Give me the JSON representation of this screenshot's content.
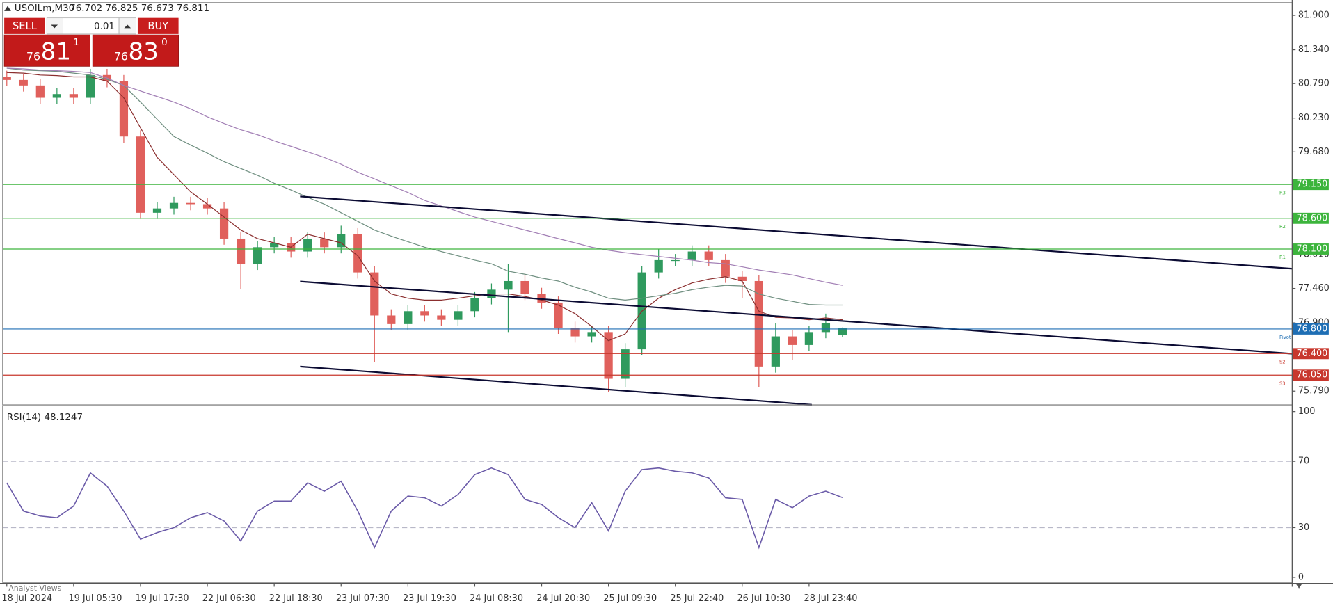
{
  "chart_data": [
    {
      "type": "candlestick",
      "title": "USOILm,M30",
      "ohlc_label": "76.702 76.825 76.673 76.811",
      "x": [
        "18 Jul 2024",
        null,
        null,
        null,
        "19 Jul 05:30",
        null,
        null,
        null,
        "19 Jul 17:30",
        null,
        null,
        null,
        "22 Jul 06:30",
        null,
        null,
        null,
        "22 Jul 18:30",
        null,
        null,
        null,
        "23 Jul 07:30",
        null,
        null,
        null,
        "23 Jul 19:30",
        null,
        null,
        null,
        "24 Jul 08:30",
        null,
        null,
        null,
        "24 Jul 20:30",
        null,
        null,
        null,
        "25 Jul 09:30",
        null,
        null,
        null,
        "25 Jul 22:40",
        null,
        null,
        null,
        "26 Jul 10:30",
        null,
        null,
        null,
        "28 Jul 23:40",
        null,
        null
      ],
      "open": [
        80.9,
        80.85,
        80.76,
        80.56,
        80.62,
        80.56,
        80.93,
        80.83,
        79.93,
        78.69,
        78.76,
        78.85,
        78.83,
        78.76,
        78.27,
        77.86,
        78.13,
        78.2,
        78.06,
        78.27,
        78.13,
        78.34,
        77.72,
        77.02,
        76.88,
        77.09,
        77.02,
        76.95,
        77.09,
        77.3,
        77.44,
        77.58,
        77.37,
        77.23,
        76.82,
        76.68,
        76.75,
        75.99,
        76.47,
        77.72,
        77.92,
        77.92,
        78.06,
        77.92,
        77.65,
        77.58,
        76.19,
        76.68,
        76.54,
        76.75,
        76.702
      ],
      "high": [
        81.0,
        80.95,
        80.86,
        80.72,
        80.72,
        81.03,
        81.03,
        80.93,
        80.03,
        78.86,
        78.95,
        78.95,
        78.93,
        78.86,
        78.37,
        78.23,
        78.3,
        78.3,
        78.37,
        78.37,
        78.48,
        78.44,
        77.82,
        77.12,
        77.19,
        77.19,
        77.12,
        77.19,
        77.4,
        77.54,
        77.86,
        77.68,
        77.47,
        77.33,
        76.92,
        76.85,
        76.85,
        76.57,
        77.82,
        78.1,
        78.02,
        78.16,
        78.16,
        78.02,
        77.75,
        77.68,
        76.9,
        76.78,
        76.85,
        77.05,
        76.825
      ],
      "low": [
        80.75,
        80.66,
        80.46,
        80.46,
        80.46,
        80.46,
        80.73,
        79.83,
        78.59,
        78.59,
        78.66,
        78.73,
        78.66,
        78.17,
        77.45,
        77.76,
        78.03,
        77.96,
        77.96,
        78.03,
        78.03,
        77.62,
        76.26,
        76.78,
        76.78,
        76.92,
        76.85,
        76.85,
        76.99,
        77.2,
        76.75,
        77.27,
        77.13,
        76.72,
        76.58,
        76.58,
        75.78,
        75.85,
        76.37,
        77.62,
        77.82,
        77.82,
        77.82,
        77.55,
        77.3,
        75.85,
        76.09,
        76.3,
        76.44,
        76.65,
        76.673
      ],
      "close": [
        80.85,
        80.76,
        80.56,
        80.62,
        80.56,
        80.93,
        80.83,
        79.93,
        78.69,
        78.76,
        78.85,
        78.83,
        78.76,
        78.27,
        77.86,
        78.13,
        78.2,
        78.06,
        78.27,
        78.13,
        78.34,
        77.72,
        77.02,
        76.88,
        77.09,
        77.02,
        76.95,
        77.09,
        77.3,
        77.44,
        77.58,
        77.37,
        77.23,
        76.82,
        76.68,
        76.75,
        75.99,
        76.47,
        77.72,
        77.92,
        77.92,
        78.06,
        77.92,
        77.65,
        77.58,
        76.19,
        76.68,
        76.54,
        76.75,
        76.89,
        76.811
      ],
      "up_color": "#2f9a5e",
      "down_color": "#e0605c",
      "series": [
        {
          "color": "#8b2e2e",
          "values": [
            80.97,
            80.96,
            80.93,
            80.92,
            80.9,
            80.9,
            80.83,
            80.56,
            80.07,
            79.59,
            79.31,
            79.03,
            78.83,
            78.62,
            78.41,
            78.27,
            78.2,
            78.13,
            78.34,
            78.27,
            78.2,
            77.99,
            77.58,
            77.37,
            77.3,
            77.27,
            77.27,
            77.3,
            77.34,
            77.37,
            77.37,
            77.33,
            77.27,
            77.19,
            77.05,
            76.84,
            76.61,
            76.72,
            77.09,
            77.3,
            77.44,
            77.55,
            77.61,
            77.65,
            77.58,
            77.09,
            76.99,
            76.98,
            76.95,
            76.98,
            76.95
          ]
        },
        {
          "color": "#6f8f80",
          "values": [
            81.04,
            81.01,
            81.0,
            80.99,
            80.96,
            80.93,
            80.86,
            80.76,
            80.49,
            80.21,
            79.93,
            79.79,
            79.66,
            79.52,
            79.41,
            79.3,
            79.17,
            79.06,
            78.94,
            78.83,
            78.69,
            78.55,
            78.41,
            78.31,
            78.22,
            78.13,
            78.06,
            77.99,
            77.92,
            77.86,
            77.74,
            77.69,
            77.63,
            77.58,
            77.48,
            77.4,
            77.3,
            77.27,
            77.3,
            77.34,
            77.38,
            77.44,
            77.48,
            77.51,
            77.5,
            77.37,
            77.3,
            77.25,
            77.2,
            77.19,
            77.19
          ]
        },
        {
          "color": "#a27fb5",
          "values": [
            81.04,
            81.03,
            81.01,
            81.0,
            80.99,
            80.97,
            80.88,
            80.76,
            80.67,
            80.58,
            80.49,
            80.38,
            80.25,
            80.14,
            80.04,
            79.96,
            79.86,
            79.77,
            79.68,
            79.59,
            79.48,
            79.35,
            79.24,
            79.13,
            79.02,
            78.89,
            78.8,
            78.71,
            78.62,
            78.55,
            78.48,
            78.41,
            78.34,
            78.27,
            78.2,
            78.13,
            78.08,
            78.04,
            78.01,
            77.98,
            77.95,
            77.92,
            77.88,
            77.86,
            77.81,
            77.76,
            77.72,
            77.68,
            77.62,
            77.56,
            77.51
          ]
        }
      ],
      "ylim": [
        75.568,
        82.108
      ],
      "yticks": [
        {
          "value": 81.9,
          "label": "81.900"
        },
        {
          "value": 81.34,
          "label": "81.340"
        },
        {
          "value": 80.79,
          "label": "80.790"
        },
        {
          "value": 80.23,
          "label": "80.230"
        },
        {
          "value": 79.68,
          "label": "79.680"
        },
        {
          "value": 78.01,
          "label": "78.010"
        },
        {
          "value": 77.46,
          "label": "77.460"
        },
        {
          "value": 76.9,
          "label": "76.900"
        },
        {
          "value": 75.79,
          "label": "75.790"
        }
      ],
      "levels": [
        {
          "name": "R3",
          "value": 79.15,
          "label": "79.150",
          "color": "#3cb43c"
        },
        {
          "name": "R2",
          "value": 78.6,
          "label": "78.600",
          "color": "#3cb43c"
        },
        {
          "name": "R1",
          "value": 78.1,
          "label": "78.100",
          "color": "#3cb43c"
        },
        {
          "name": "Pivot",
          "value": 76.8,
          "label": "76.800",
          "color": "#1e6eb4"
        },
        {
          "name": "S2",
          "value": 76.4,
          "label": "76.400",
          "color": "#c8372d"
        },
        {
          "name": "S3",
          "value": 76.05,
          "label": "76.050",
          "color": "#c8372d"
        }
      ]
    },
    {
      "type": "line",
      "title": "RSI(14) 48.1247",
      "color": "#6a5aa8",
      "values": [
        57,
        40,
        37,
        36,
        43,
        63,
        55,
        40,
        23,
        27,
        30,
        36,
        39,
        34,
        22,
        40,
        46,
        46,
        57,
        52,
        58,
        40,
        18,
        40,
        49,
        48,
        43,
        50,
        62,
        66,
        62,
        47,
        44,
        36,
        30,
        45,
        28,
        52,
        65,
        66,
        64,
        63,
        60,
        48,
        47,
        18,
        47,
        42,
        49,
        52,
        48.1247
      ],
      "ylim": [
        -3.1,
        103.6
      ],
      "yticks": [
        0,
        30,
        70,
        100
      ],
      "levels": [
        70,
        30
      ]
    }
  ],
  "trade_panel": {
    "sell": "SELL",
    "buy": "BUY",
    "volume": "0.01",
    "sell_price": {
      "prefix": "76",
      "main": "81",
      "suffix": "1"
    },
    "buy_price": {
      "prefix": "76",
      "main": "83",
      "suffix": "0"
    }
  },
  "footer_tab": "Analyst Views"
}
